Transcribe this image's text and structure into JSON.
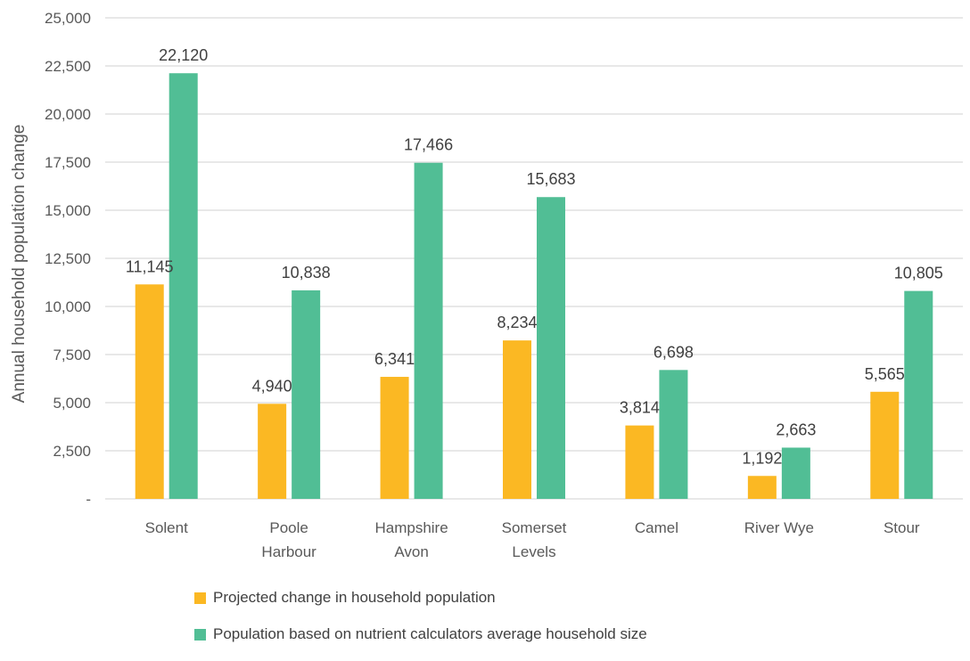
{
  "chart_data": {
    "type": "bar",
    "title": "",
    "xlabel": "",
    "ylabel": "Annual household population change",
    "ylim": [
      0,
      25000
    ],
    "yticks": [
      0,
      2500,
      5000,
      7500,
      10000,
      12500,
      15000,
      17500,
      20000,
      22500,
      25000
    ],
    "ytick_labels": [
      "-",
      "2,500",
      "5,000",
      "7,500",
      "10,000",
      "12,500",
      "15,000",
      "17,500",
      "20,000",
      "22,500",
      "25,000"
    ],
    "grid": true,
    "legend_position": "bottom",
    "categories": [
      [
        "Solent"
      ],
      [
        "Poole",
        "Harbour"
      ],
      [
        "Hampshire",
        "Avon"
      ],
      [
        "Somerset",
        "Levels"
      ],
      [
        "Camel"
      ],
      [
        "River Wye"
      ],
      [
        "Stour"
      ]
    ],
    "series": [
      {
        "name": "Projected change in household population",
        "color": "#FBB823",
        "values": [
          11145,
          4940,
          6341,
          8234,
          3814,
          1192,
          5565
        ],
        "labels": [
          "11,145",
          "4,940",
          "6,341",
          "8,234",
          "3,814",
          "1,192",
          "5,565"
        ]
      },
      {
        "name": "Population based on nutrient calculators average household size",
        "color": "#51BE95",
        "values": [
          22120,
          10838,
          17466,
          15683,
          6698,
          2663,
          10805
        ],
        "labels": [
          "22,120",
          "10,838",
          "17,466",
          "15,683",
          "6,698",
          "2,663",
          "10,805"
        ]
      }
    ]
  }
}
